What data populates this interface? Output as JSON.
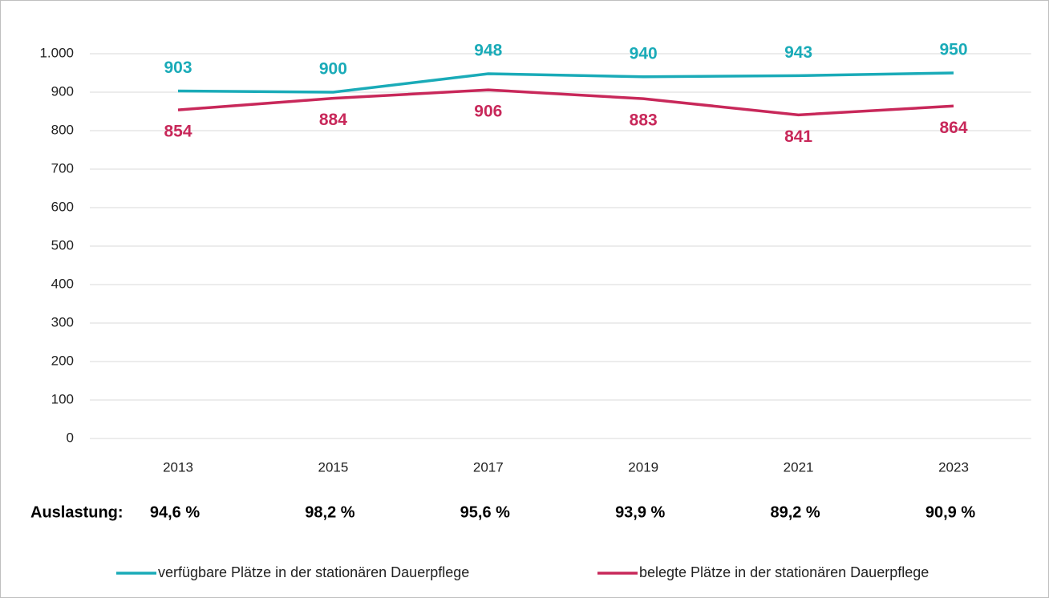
{
  "chart_data": {
    "type": "line",
    "categories": [
      "2013",
      "2015",
      "2017",
      "2019",
      "2021",
      "2023"
    ],
    "series": [
      {
        "name": "verfügbare Plätze in der stationären Dauerpflege",
        "color": "#1aabb8",
        "values": [
          903,
          900,
          948,
          940,
          943,
          950
        ]
      },
      {
        "name": "belegte Plätze in der stationären Dauerpflege",
        "color": "#c8285a",
        "values": [
          854,
          884,
          906,
          883,
          841,
          864
        ]
      }
    ],
    "ylim": [
      0,
      1000
    ],
    "yticks": [
      0,
      100,
      200,
      300,
      400,
      500,
      600,
      700,
      800,
      900,
      {
        "value": 1000,
        "label": "1.000"
      }
    ],
    "grid": true,
    "legend": "bottom",
    "utilization": {
      "label": "Auslastung:",
      "values": [
        94.6,
        98.2,
        95.6,
        93.9,
        89.2,
        90.9
      ],
      "value_labels": [
        "94,6 %",
        "98,2 %",
        "95,6 %",
        "93,9 %",
        "89,2 %",
        "90,9 %"
      ]
    }
  }
}
